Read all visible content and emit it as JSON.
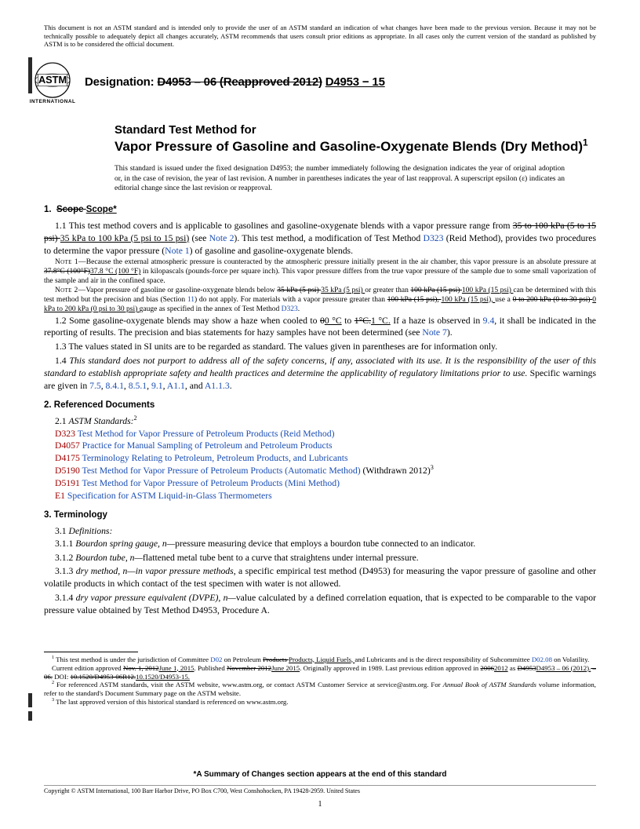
{
  "disclaimer": "This document is not an ASTM standard and is intended only to provide the user of an ASTM standard an indication of what changes have been made to the previous version. Because it may not be technically possible to adequately depict all changes accurately, ASTM recommends that users consult prior editions as appropriate. In all cases only the current version of the standard as published by ASTM is to be considered the official document.",
  "designation_label": "Designation:",
  "designation_old": "D4953 – 06 (Reapproved 2012)",
  "designation_new": "D4953 − 15",
  "title_line1": "Standard Test Method for",
  "title_line2": "Vapor Pressure of Gasoline and Gasoline-Oxygenate Blends (Dry Method)",
  "title_sup": "1",
  "issuance": "This standard is issued under the fixed designation D4953; the number immediately following the designation indicates the year of original adoption or, in the case of revision, the year of last revision. A number in parentheses indicates the year of last reapproval. A superscript epsilon (ε) indicates an editorial change since the last revision or reapproval.",
  "s1_head": "1.  Scope",
  "s1_head_new": "Scope*",
  "p11a": "1.1  This test method covers and is applicable to gasolines and gasoline-oxygenate blends with a vapor pressure range from ",
  "p11_old1": "35 to 100 kPa (5 to 15 psi) ",
  "p11_new1": "35 kPa to 100 kPa (5 psi to 15 psi)",
  "p11b": " (see ",
  "note2_ref": "Note 2",
  "p11c": "). This test method, a modification of Test Method ",
  "d323": "D323",
  "p11d": " (Reid Method), provides two procedures to determine the vapor pressure (",
  "note1_ref": "Note 1",
  "p11e": ") of gasoline and gasoline-oxygenate blends.",
  "note1_label": "Note 1—",
  "note1_a": "Because the external atmospheric pressure is counteracted by the atmospheric pressure initially present in the air chamber, this vapor pressure is an absolute pressure at ",
  "note1_old": "37.8°C (100°F)",
  "note1_new": "37.8 °C (100 °F)",
  "note1_b": " in kilopascals (pounds-force per square inch). This vapor pressure differs from the true vapor pressure of the sample due to some small vaporization of the sample and air in the confined space.",
  "note2_label": "Note 2—",
  "note2_a": "Vapor pressure of gasoline or gasoline-oxygenate blends below ",
  "note2_old1": "35 kPa (5 psi) ",
  "note2_new1": "35 kPa (5 psi) ",
  "note2_b": "or greater than ",
  "note2_old2": "100 kPa (15 psi) ",
  "note2_new2": "100 kPa (15 psi) ",
  "note2_c": "can be determined with this test method but the precision and bias (Section ",
  "sec11": "11",
  "note2_d": ") do not apply. For materials with a vapor pressure greater than ",
  "note2_old3": "100 kPa (15 psi), ",
  "note2_new3": "100 kPa (15 psi), ",
  "note2_e": "use a ",
  "note2_old4": "0 to 200 kPa (0 to 30 psi) ",
  "note2_new4": "0 kPa to 200 kPa (0 psi to 30 psi) ",
  "note2_f": "gauge as specified in the annex of Test Method ",
  "p12a": "1.2  Some gasoline-oxygenate blends may show a haze when cooled to ",
  "p12_old1": "0",
  "p12_new1": "0 °C",
  "p12_mid": " to ",
  "p12_old2": "1°C.",
  "p12_new2": "1 °C.",
  "p12b": " If a haze is observed in ",
  "ref94": "9.4",
  "p12c": ", it shall be indicated in the reporting of results. The precision and bias statements for hazy samples have not been determined (see ",
  "note7_ref": "Note 7",
  "p12d": ").",
  "p13": "1.3  The values stated in SI units are to be regarded as standard. The values given in parentheses are for information only.",
  "p14a": "1.4  ",
  "p14b": "This standard does not purport to address all of the safety concerns, if any, associated with its use. It is the responsibility of the user of this standard to establish appropriate safety and health practices and determine the applicability of regulatory limitations prior to use.",
  "p14c": " Specific warnings are given in ",
  "warn_refs": [
    "7.5",
    "8.4.1",
    "8.5.1",
    "9.1",
    "A1.1",
    "A1.1.3"
  ],
  "s2_head": "2.  Referenced Documents",
  "s21": "2.1  ",
  "s21_ital": "ASTM Standards:",
  "s21_sup": "2",
  "refs": [
    {
      "code": "D323",
      "text": "Test Method for Vapor Pressure of Petroleum Products (Reid Method)"
    },
    {
      "code": "D4057",
      "text": "Practice for Manual Sampling of Petroleum and Petroleum Products"
    },
    {
      "code": "D4175",
      "text": "Terminology Relating to Petroleum, Petroleum Products, and Lubricants"
    },
    {
      "code": "D5190",
      "text": "Test Method for Vapor Pressure of Petroleum Products (Automatic Method)",
      "suffix": " (Withdrawn 2012)",
      "sup": "3"
    },
    {
      "code": "D5191",
      "text": "Test Method for Vapor Pressure of Petroleum Products (Mini Method)"
    },
    {
      "code": "E1",
      "text": "Specification for ASTM Liquid-in-Glass Thermometers"
    }
  ],
  "s3_head": "3.  Terminology",
  "s31": "3.1  ",
  "s31_ital": "Definitions:",
  "p311_a": "3.1.1  ",
  "p311_term": "Bourdon spring gauge, n—",
  "p311_b": "pressure measuring device that employs a bourdon tube connected to an indicator.",
  "p312_a": "3.1.2  ",
  "p312_term": "Bourdon tube, n—",
  "p312_b": "flattened metal tube bent to a curve that straightens under internal pressure.",
  "p313_a": "3.1.3  ",
  "p313_term": "dry method, n—in vapor pressure methods",
  "p313_b": ", a specific empirical test method (D4953) for measuring the vapor pressure of gasoline and other volatile products in which contact of the test specimen with water is not allowed.",
  "p314_a": "3.1.4  ",
  "p314_term": "dry vapor pressure equivalent (DVPE), n—",
  "p314_b": "value calculated by a defined correlation equation, that is expected to be comparable to the vapor pressure value obtained by Test Method D4953, Procedure A.",
  "fn1_a": " This test method is under the jurisdiction of Committee ",
  "fn1_d02": "D02",
  "fn1_b": " on Petroleum ",
  "fn1_old1": "Products ",
  "fn1_new1": "Products, Liquid Fuels, ",
  "fn1_c": "and Lubricants and is the direct responsibility of Subcommittee ",
  "fn1_d0208": "D02.08",
  "fn1_d": " on Volatility.",
  "fn1_line2a": "Current edition approved ",
  "fn1_old2": "Nov. 1, 2012",
  "fn1_new2": "June 1, 2015",
  "fn1_line2b": ". Published ",
  "fn1_old3": "November 2012",
  "fn1_new3": "June 2015",
  "fn1_line2c": ". Originally approved in 1989. Last previous edition approved in ",
  "fn1_old4": "2006",
  "fn1_new4": "2012",
  "fn1_line2d": " as ",
  "fn1_old5": "D4953",
  "fn1_new5": "D4953 – 06 (2012).",
  "fn1_old6": " –06.",
  "fn1_line2e": " DOI: ",
  "fn1_old7": "10.1520/D4953-06R12.",
  "fn1_new7": "10.1520/D4953-15.",
  "fn2": " For referenced ASTM standards, visit the ASTM website, www.astm.org, or contact ASTM Customer Service at service@astm.org. For Annual Book of ASTM Standards volume information, refer to the standard's Document Summary page on the ASTM website.",
  "fn3": " The last approved version of this historical standard is referenced on www.astm.org.",
  "summary": "*A Summary of Changes section appears at the end of this standard",
  "copyright": "Copyright © ASTM International, 100 Barr Harbor Drive, PO Box C700, West Conshohocken, PA 19428-2959. United States",
  "page": "1"
}
